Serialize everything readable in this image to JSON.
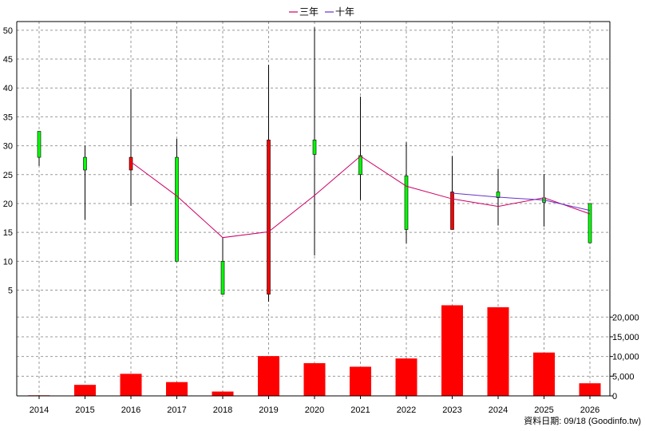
{
  "legend": {
    "line1": "三年",
    "line2": "十年"
  },
  "footer": "資料日期: 09/18 (Goodinfo.tw)",
  "colors": {
    "up": "#00ff00",
    "down": "#ff0000",
    "line_3y": "#cc0066",
    "line_10y": "#6633cc",
    "volume": "#ff0000",
    "grid": "#999999"
  },
  "chart_data": {
    "type": "candlestick+bar",
    "x": [
      "2014",
      "2015",
      "2016",
      "2017",
      "2018",
      "2019",
      "2020",
      "2021",
      "2022",
      "2023",
      "2024",
      "2025",
      "2026"
    ],
    "price": {
      "ylim": [
        3,
        51.5
      ],
      "yticks": [
        5,
        10,
        15,
        20,
        25,
        30,
        35,
        40,
        45,
        50
      ],
      "candles": [
        {
          "x": "2014",
          "open": 28,
          "high": 32.5,
          "low": 26.5,
          "close": 32.5
        },
        {
          "x": "2015",
          "open": 25.8,
          "high": 30,
          "low": 17.2,
          "close": 28
        },
        {
          "x": "2016",
          "open": 28,
          "high": 39.8,
          "low": 19.6,
          "close": 25.8
        },
        {
          "x": "2017",
          "open": 10,
          "high": 31.2,
          "low": 10,
          "close": 28
        },
        {
          "x": "2018",
          "open": 4.3,
          "high": 14.2,
          "low": 4.3,
          "close": 10
        },
        {
          "x": "2019",
          "open": 31,
          "high": 44,
          "low": 3,
          "close": 4.3
        },
        {
          "x": "2020",
          "open": 28.5,
          "high": 50.5,
          "low": 11,
          "close": 31
        },
        {
          "x": "2021",
          "open": 25,
          "high": 38.5,
          "low": 20.6,
          "close": 28.3
        },
        {
          "x": "2022",
          "open": 15.5,
          "high": 30.6,
          "low": 13.1,
          "close": 24.8
        },
        {
          "x": "2023",
          "open": 22,
          "high": 28.2,
          "low": 15.5,
          "close": 15.5
        },
        {
          "x": "2024",
          "open": 21,
          "high": 26,
          "low": 16.2,
          "close": 22
        },
        {
          "x": "2025",
          "open": 20.2,
          "high": 25.1,
          "low": 16,
          "close": 21
        },
        {
          "x": "2026",
          "open": 13.2,
          "high": 19.8,
          "low": 13.2,
          "close": 20
        }
      ],
      "series": [
        {
          "name": "三年",
          "x": [
            "2016",
            "2017",
            "2018",
            "2019",
            "2020",
            "2021",
            "2022",
            "2023",
            "2024",
            "2025",
            "2026"
          ],
          "values": [
            27.2,
            21.3,
            14.1,
            15.1,
            21.4,
            28.2,
            23,
            20.8,
            19.5,
            21,
            18.2
          ]
        },
        {
          "name": "十年",
          "x": [
            "2023",
            "2024",
            "2025",
            "2026"
          ],
          "values": [
            21.8,
            21.1,
            20.6,
            18.8
          ]
        }
      ]
    },
    "volume": {
      "ylim": [
        0,
        23500
      ],
      "yticks": [
        0,
        5000,
        10000,
        15000,
        20000
      ],
      "ytick_labels": [
        "0",
        "5,000",
        "10,000",
        "15,000",
        "20,000"
      ],
      "values": [
        150,
        2800,
        5600,
        3500,
        1100,
        10100,
        8300,
        7400,
        9500,
        23000,
        22500,
        11000,
        3200
      ]
    },
    "grid": true,
    "legend_position": "top-center"
  }
}
